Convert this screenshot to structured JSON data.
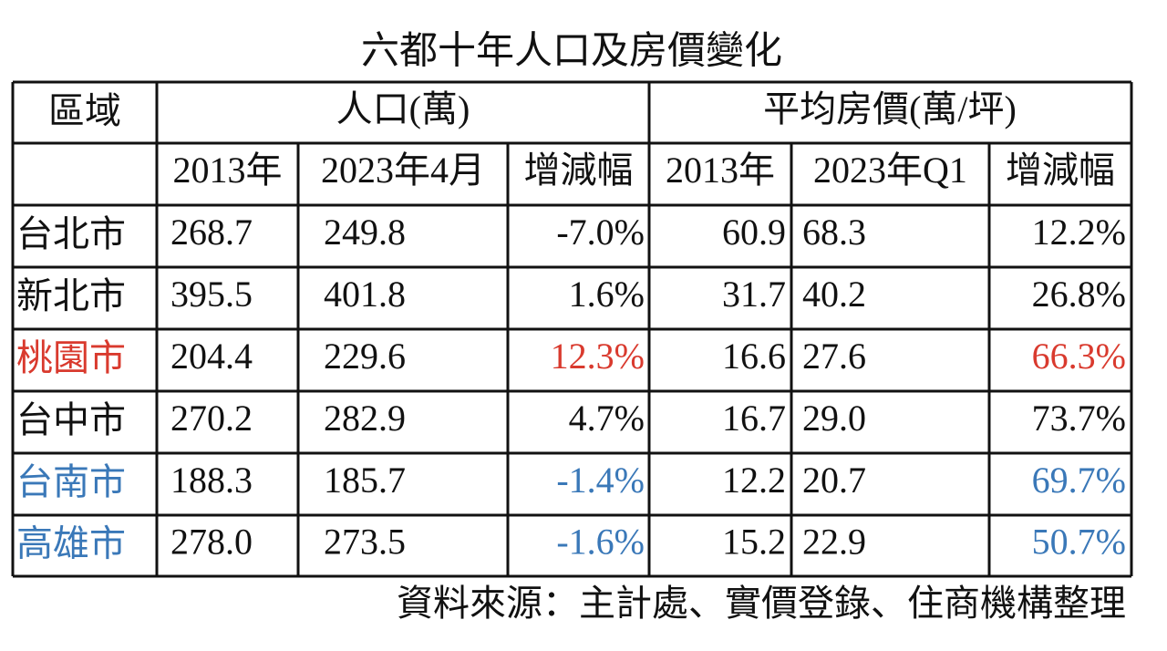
{
  "title": "六都十年人口及房價變化",
  "table": {
    "header": {
      "region": "區域",
      "population": "人口(萬)",
      "price": "平均房價(萬/坪)"
    },
    "subheader": [
      "2013年",
      "2023年4月",
      "增減幅",
      "2013年",
      "2023年Q1",
      "增減幅"
    ],
    "rows": [
      {
        "cells": [
          "台北市",
          "268.7",
          "249.8",
          "-7.0%",
          "60.9",
          "68.3",
          "12.2%"
        ]
      },
      {
        "cells": [
          "新北市",
          "395.5",
          "401.8",
          "1.6%",
          "31.7",
          "40.2",
          "26.8%"
        ]
      },
      {
        "cells": [
          "桃園市",
          "204.4",
          "229.6",
          "12.3%",
          "16.6",
          "27.6",
          "66.3%"
        ],
        "color": "#d93a2e"
      },
      {
        "cells": [
          "台中市",
          "270.2",
          "282.9",
          "4.7%",
          "16.7",
          "29.0",
          "73.7%"
        ]
      },
      {
        "cells": [
          "台南市",
          "188.3",
          "185.7",
          "-1.4%",
          "12.2",
          "20.7",
          "69.7%"
        ],
        "color": "#3a78b8"
      },
      {
        "cells": [
          "高雄市",
          "278.0",
          "273.5",
          "-1.6%",
          "15.2",
          "22.9",
          "50.7%"
        ],
        "color": "#3a78b8"
      }
    ]
  },
  "source": "資料來源：主計處、實價登錄、住商機構整理"
}
